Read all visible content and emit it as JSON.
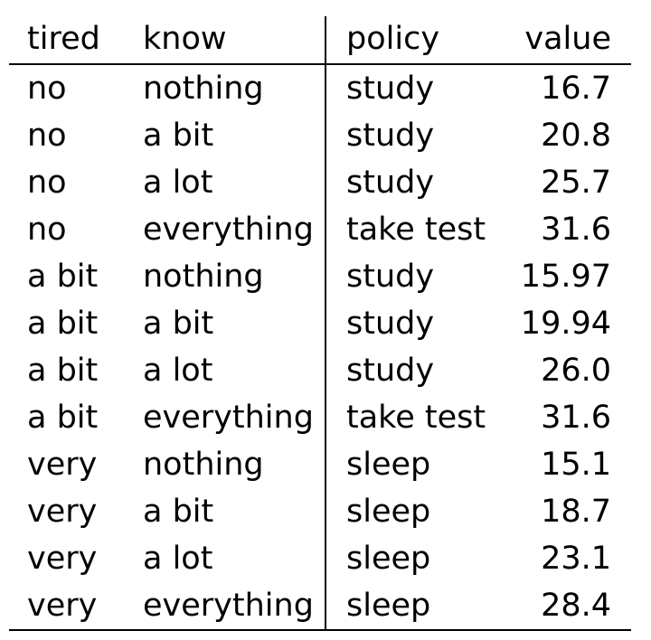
{
  "table": {
    "headers": {
      "tired": "tired",
      "know": "know",
      "policy": "policy",
      "value": "value"
    },
    "rows": [
      {
        "tired": "no",
        "know": "nothing",
        "policy": "study",
        "value": "16.7"
      },
      {
        "tired": "no",
        "know": "a bit",
        "policy": "study",
        "value": "20.8"
      },
      {
        "tired": "no",
        "know": "a lot",
        "policy": "study",
        "value": "25.7"
      },
      {
        "tired": "no",
        "know": "everything",
        "policy": "take test",
        "value": "31.6"
      },
      {
        "tired": "a bit",
        "know": "nothing",
        "policy": "study",
        "value": "15.97"
      },
      {
        "tired": "a bit",
        "know": "a bit",
        "policy": "study",
        "value": "19.94"
      },
      {
        "tired": "a bit",
        "know": "a lot",
        "policy": "study",
        "value": "26.0"
      },
      {
        "tired": "a bit",
        "know": "everything",
        "policy": "take test",
        "value": "31.6"
      },
      {
        "tired": "very",
        "know": "nothing",
        "policy": "sleep",
        "value": "15.1"
      },
      {
        "tired": "very",
        "know": "a bit",
        "policy": "sleep",
        "value": "18.7"
      },
      {
        "tired": "very",
        "know": "a lot",
        "policy": "sleep",
        "value": "23.1"
      },
      {
        "tired": "very",
        "know": "everything",
        "policy": "sleep",
        "value": "28.4"
      }
    ]
  }
}
